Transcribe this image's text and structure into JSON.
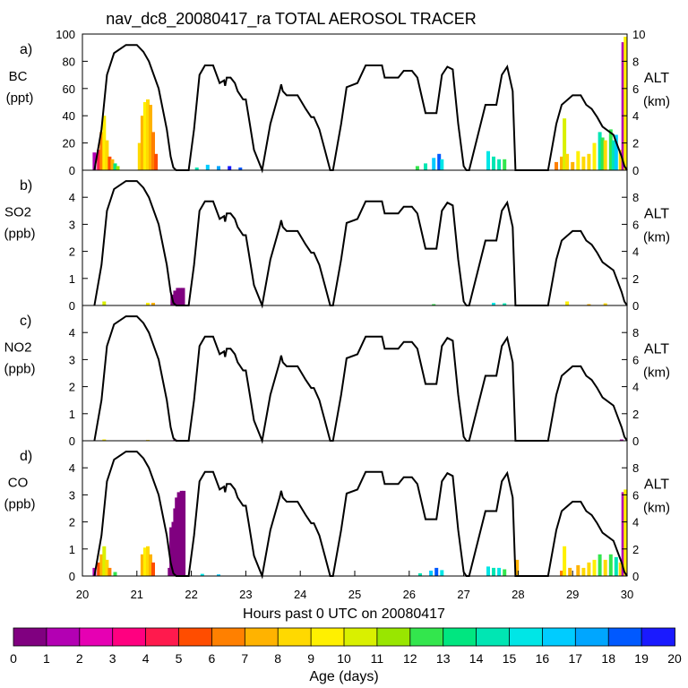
{
  "chart_data": {
    "type": "area",
    "title": "nav_dc8_20080417_ra TOTAL AEROSOL TRACER",
    "xlabel": "Hours past 0 UTC on 20080417",
    "xlim": [
      20,
      30
    ],
    "x_ticks": [
      "20",
      "21",
      "22",
      "23",
      "24",
      "25",
      "26",
      "27",
      "28",
      "29",
      "30"
    ],
    "right_axis": {
      "label": "ALT",
      "unit": "(km)",
      "ylim": [
        0,
        10
      ]
    },
    "altitude_track": {
      "name": "ALT (km)",
      "x": [
        20.22,
        20.35,
        20.45,
        20.58,
        20.8,
        21.0,
        21.12,
        21.22,
        21.4,
        21.55,
        21.62,
        21.67,
        21.72,
        21.75,
        21.95,
        22.05,
        22.15,
        22.25,
        22.4,
        22.52,
        22.6,
        22.62,
        22.65,
        22.72,
        22.8,
        22.85,
        22.95,
        23.0,
        23.05,
        23.15,
        23.3,
        23.45,
        23.62,
        23.65,
        23.68,
        23.75,
        23.95,
        24.1,
        24.2,
        24.25,
        24.35,
        24.45,
        24.55,
        24.6,
        24.75,
        24.85,
        25.05,
        25.2,
        25.3,
        25.5,
        25.55,
        25.8,
        25.9,
        26.05,
        26.15,
        26.3,
        26.5,
        26.6,
        26.7,
        26.8,
        26.9,
        27.0,
        27.05,
        27.1,
        27.4,
        27.6,
        27.7,
        27.8,
        27.9,
        27.95,
        28.0,
        28.05,
        28.2,
        28.55,
        28.7,
        28.8,
        29.0,
        29.15,
        29.25,
        29.35,
        29.45,
        29.55,
        29.75,
        29.9,
        29.95,
        30.0
      ],
      "y": [
        0,
        3,
        7,
        8.6,
        9.2,
        9.2,
        8.7,
        8,
        6,
        3,
        1,
        0.2,
        0,
        0,
        0,
        3,
        7,
        7.7,
        7.7,
        6.4,
        6.6,
        6.2,
        6.8,
        6.8,
        6.4,
        5.8,
        5.2,
        5.2,
        4,
        1.5,
        0,
        3.4,
        5.8,
        6.3,
        5.8,
        5.5,
        5.5,
        4.5,
        3.9,
        3.9,
        3,
        1.5,
        0,
        0,
        3.4,
        6.1,
        6.4,
        7.7,
        7.7,
        7.7,
        6.8,
        6.8,
        7.3,
        7.3,
        6.8,
        4.2,
        4.2,
        7,
        7.6,
        7.4,
        3.4,
        0.3,
        0,
        0,
        4.8,
        4.8,
        7,
        7.6,
        5.8,
        0,
        0,
        0,
        0,
        0,
        3.4,
        4.8,
        5.5,
        5.5,
        4.8,
        4.5,
        3.9,
        3.2,
        2.6,
        1,
        0.3,
        0
      ]
    },
    "colorbar": {
      "label": "Age (days)",
      "ticks": [
        "0",
        "1",
        "2",
        "3",
        "4",
        "5",
        "6",
        "7",
        "8",
        "9",
        "10",
        "11",
        "12",
        "13",
        "14",
        "15",
        "16",
        "17",
        "18",
        "19",
        "20"
      ],
      "colors": [
        "#800080",
        "#b300b3",
        "#e600b3",
        "#ff0080",
        "#ff1a4d",
        "#ff4d00",
        "#ff8000",
        "#ffb300",
        "#ffd900",
        "#fff000",
        "#d9f000",
        "#99e600",
        "#33e64d",
        "#00e680",
        "#00e6b3",
        "#00e6e6",
        "#00ccff",
        "#00a6ff",
        "#0059ff",
        "#1a1aff",
        "#8000ff"
      ]
    },
    "panels": [
      {
        "letter": "a)",
        "label": "BC",
        "unit": "(ppt)",
        "ylim": [
          0,
          100
        ],
        "y_ticks": [
          "0",
          "20",
          "40",
          "60",
          "80",
          "100"
        ],
        "series": [
          {
            "x": 20.22,
            "top": 13,
            "c": 1
          },
          {
            "x": 20.3,
            "top": 15,
            "c": 4
          },
          {
            "x": 20.35,
            "top": 28,
            "c": 6
          },
          {
            "x": 20.4,
            "top": 40,
            "c": 9
          },
          {
            "x": 20.45,
            "top": 22,
            "c": 8
          },
          {
            "x": 20.5,
            "top": 10,
            "c": 5
          },
          {
            "x": 20.55,
            "top": 8,
            "c": 7
          },
          {
            "x": 20.6,
            "top": 5,
            "c": 13
          },
          {
            "x": 20.65,
            "top": 3,
            "c": 11
          },
          {
            "x": 21.05,
            "top": 20,
            "c": 8
          },
          {
            "x": 21.1,
            "top": 40,
            "c": 7
          },
          {
            "x": 21.15,
            "top": 50,
            "c": 9
          },
          {
            "x": 21.2,
            "top": 52,
            "c": 8
          },
          {
            "x": 21.25,
            "top": 48,
            "c": 7
          },
          {
            "x": 21.3,
            "top": 28,
            "c": 6
          },
          {
            "x": 21.35,
            "top": 12,
            "c": 5
          },
          {
            "x": 22.1,
            "top": 2,
            "c": 14
          },
          {
            "x": 22.3,
            "top": 4,
            "c": 16
          },
          {
            "x": 22.5,
            "top": 3,
            "c": 17
          },
          {
            "x": 22.7,
            "top": 3,
            "c": 19
          },
          {
            "x": 22.9,
            "top": 2,
            "c": 18
          },
          {
            "x": 26.15,
            "top": 3,
            "c": 12
          },
          {
            "x": 26.3,
            "top": 5,
            "c": 14
          },
          {
            "x": 26.45,
            "top": 9,
            "c": 16
          },
          {
            "x": 26.55,
            "top": 12,
            "c": 18
          },
          {
            "x": 26.6,
            "top": 8,
            "c": 15
          },
          {
            "x": 27.45,
            "top": 14,
            "c": 15
          },
          {
            "x": 27.55,
            "top": 10,
            "c": 14
          },
          {
            "x": 27.65,
            "top": 8,
            "c": 14
          },
          {
            "x": 27.75,
            "top": 8,
            "c": 12
          },
          {
            "x": 28.7,
            "top": 6,
            "c": 6
          },
          {
            "x": 28.8,
            "top": 10,
            "c": 7
          },
          {
            "x": 28.85,
            "top": 38,
            "c": 10
          },
          {
            "x": 28.9,
            "top": 12,
            "c": 8
          },
          {
            "x": 29.0,
            "top": 6,
            "c": 7
          },
          {
            "x": 29.1,
            "top": 14,
            "c": 9
          },
          {
            "x": 29.2,
            "top": 10,
            "c": 8
          },
          {
            "x": 29.3,
            "top": 12,
            "c": 8
          },
          {
            "x": 29.4,
            "top": 20,
            "c": 9
          },
          {
            "x": 29.5,
            "top": 28,
            "c": 14
          },
          {
            "x": 29.55,
            "top": 24,
            "c": 12
          },
          {
            "x": 29.6,
            "top": 22,
            "c": 8
          },
          {
            "x": 29.7,
            "top": 30,
            "c": 12
          },
          {
            "x": 29.75,
            "top": 22,
            "c": 14
          },
          {
            "x": 29.8,
            "top": 26,
            "c": 16
          },
          {
            "x": 29.88,
            "top": 15,
            "c": 8
          },
          {
            "x": 29.93,
            "top": 94,
            "c": 1
          },
          {
            "x": 29.97,
            "top": 98,
            "c": 9
          }
        ]
      },
      {
        "letter": "b)",
        "label": "SO2",
        "unit": "(ppb)",
        "ylim": [
          0,
          5
        ],
        "y_ticks": [
          "0",
          "1",
          "2",
          "3",
          "4"
        ],
        "series": [
          {
            "x": 20.4,
            "top": 0.15,
            "c": 10
          },
          {
            "x": 21.2,
            "top": 0.1,
            "c": 9
          },
          {
            "x": 21.3,
            "top": 0.1,
            "c": 7
          },
          {
            "x": 21.65,
            "top": 0.4,
            "c": 0
          },
          {
            "x": 21.7,
            "top": 0.55,
            "c": 0
          },
          {
            "x": 21.75,
            "top": 0.65,
            "c": 0
          },
          {
            "x": 21.8,
            "top": 0.65,
            "c": 0
          },
          {
            "x": 21.85,
            "top": 0.65,
            "c": 0
          },
          {
            "x": 26.45,
            "top": 0.05,
            "c": 12
          },
          {
            "x": 27.55,
            "top": 0.1,
            "c": 15
          },
          {
            "x": 27.75,
            "top": 0.08,
            "c": 14
          },
          {
            "x": 28.9,
            "top": 0.15,
            "c": 9
          },
          {
            "x": 29.3,
            "top": 0.05,
            "c": 7
          },
          {
            "x": 29.6,
            "top": 0.08,
            "c": 8
          }
        ]
      },
      {
        "letter": "c)",
        "label": "NO2",
        "unit": "(ppb)",
        "ylim": [
          0,
          5
        ],
        "y_ticks": [
          "0",
          "1",
          "2",
          "3",
          "4"
        ],
        "series": [
          {
            "x": 20.4,
            "top": 0.05,
            "c": 9
          },
          {
            "x": 21.2,
            "top": 0.03,
            "c": 8
          },
          {
            "x": 21.7,
            "top": 0.05,
            "c": 0
          },
          {
            "x": 29.9,
            "top": 0.05,
            "c": 1
          }
        ]
      },
      {
        "letter": "d)",
        "label": "CO",
        "unit": "(ppb)",
        "ylim": [
          0,
          5
        ],
        "y_ticks": [
          "0",
          "1",
          "2",
          "3",
          "4"
        ],
        "series": [
          {
            "x": 20.22,
            "top": 0.3,
            "c": 1
          },
          {
            "x": 20.3,
            "top": 0.5,
            "c": 5
          },
          {
            "x": 20.35,
            "top": 0.8,
            "c": 7
          },
          {
            "x": 20.4,
            "top": 1.1,
            "c": 10
          },
          {
            "x": 20.45,
            "top": 0.6,
            "c": 8
          },
          {
            "x": 20.5,
            "top": 0.3,
            "c": 6
          },
          {
            "x": 20.6,
            "top": 0.15,
            "c": 12
          },
          {
            "x": 21.1,
            "top": 0.8,
            "c": 7
          },
          {
            "x": 21.15,
            "top": 1.05,
            "c": 9
          },
          {
            "x": 21.2,
            "top": 1.1,
            "c": 8
          },
          {
            "x": 21.25,
            "top": 0.8,
            "c": 7
          },
          {
            "x": 21.3,
            "top": 0.5,
            "c": 5
          },
          {
            "x": 21.6,
            "top": 0.3,
            "c": 0
          },
          {
            "x": 21.63,
            "top": 1.8,
            "c": 0
          },
          {
            "x": 21.67,
            "top": 2.0,
            "c": 0
          },
          {
            "x": 21.7,
            "top": 2.5,
            "c": 0
          },
          {
            "x": 21.73,
            "top": 2.9,
            "c": 0
          },
          {
            "x": 21.77,
            "top": 3.1,
            "c": 0
          },
          {
            "x": 21.82,
            "top": 3.15,
            "c": 0
          },
          {
            "x": 21.86,
            "top": 3.15,
            "c": 0
          },
          {
            "x": 22.2,
            "top": 0.08,
            "c": 15
          },
          {
            "x": 22.5,
            "top": 0.06,
            "c": 16
          },
          {
            "x": 26.2,
            "top": 0.1,
            "c": 14
          },
          {
            "x": 26.4,
            "top": 0.2,
            "c": 16
          },
          {
            "x": 26.5,
            "top": 0.3,
            "c": 18
          },
          {
            "x": 26.6,
            "top": 0.22,
            "c": 15
          },
          {
            "x": 27.45,
            "top": 0.35,
            "c": 15
          },
          {
            "x": 27.55,
            "top": 0.3,
            "c": 14
          },
          {
            "x": 27.65,
            "top": 0.3,
            "c": 15
          },
          {
            "x": 27.75,
            "top": 0.25,
            "c": 12
          },
          {
            "x": 27.98,
            "top": 0.6,
            "c": 7
          },
          {
            "x": 28.8,
            "top": 0.2,
            "c": 6
          },
          {
            "x": 28.85,
            "top": 1.1,
            "c": 9
          },
          {
            "x": 28.95,
            "top": 0.3,
            "c": 7
          },
          {
            "x": 29.1,
            "top": 0.4,
            "c": 7
          },
          {
            "x": 29.2,
            "top": 0.3,
            "c": 8
          },
          {
            "x": 29.3,
            "top": 0.5,
            "c": 8
          },
          {
            "x": 29.4,
            "top": 0.6,
            "c": 9
          },
          {
            "x": 29.5,
            "top": 0.8,
            "c": 12
          },
          {
            "x": 29.6,
            "top": 0.6,
            "c": 8
          },
          {
            "x": 29.7,
            "top": 0.8,
            "c": 12
          },
          {
            "x": 29.8,
            "top": 0.7,
            "c": 14
          },
          {
            "x": 29.88,
            "top": 0.5,
            "c": 8
          },
          {
            "x": 29.93,
            "top": 3.1,
            "c": 1
          },
          {
            "x": 29.97,
            "top": 3.2,
            "c": 9
          }
        ]
      }
    ]
  }
}
